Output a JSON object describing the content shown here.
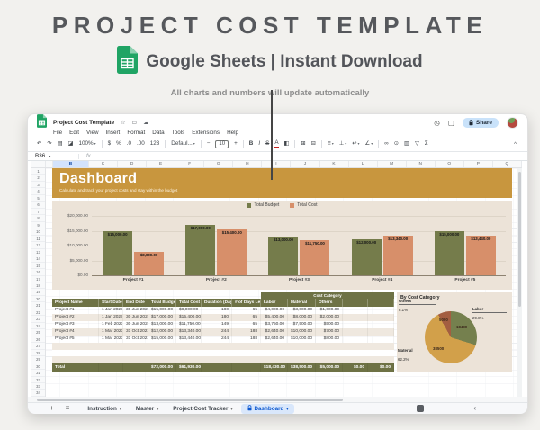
{
  "hero": {
    "title": "PROJECT COST TEMPLATE",
    "subtitle": "Google Sheets | Instant Download",
    "note": "All charts and numbers will update automatically"
  },
  "window": {
    "doc_title": "Project Cost Template",
    "menu": [
      "File",
      "Edit",
      "View",
      "Insert",
      "Format",
      "Data",
      "Tools",
      "Extensions",
      "Help"
    ],
    "name_box": "B36",
    "fx_label": "fx",
    "share_label": "Share",
    "zoom_level": "100%",
    "font_name": "Defaul...",
    "font_size": "10",
    "column_letters": [
      "A",
      "B",
      "C",
      "D",
      "E",
      "F",
      "G",
      "H",
      "I",
      "J",
      "K",
      "L",
      "M",
      "N",
      "O",
      "P",
      "Q"
    ],
    "selected_column": "B",
    "row_count": 34,
    "tabs": [
      {
        "label": "Instruction",
        "active": false,
        "locked": false
      },
      {
        "label": "Master",
        "active": false,
        "locked": false
      },
      {
        "label": "Project Cost Tracker",
        "active": false,
        "locked": false
      },
      {
        "label": "Dashboard",
        "active": true,
        "locked": true
      }
    ]
  },
  "banner": {
    "title": "Dashboard",
    "subtitle": "Calculate and track your project costs and stay within the budget"
  },
  "chart_data": [
    {
      "type": "bar",
      "title": "",
      "categories": [
        "Project #1",
        "Project #2",
        "Project #3",
        "Project #4",
        "Project #5"
      ],
      "series": [
        {
          "name": "Total Budget",
          "color": "#757c4b",
          "values": [
            15000,
            17000,
            13000,
            12000,
            15000
          ],
          "labels": [
            "$15,000.00",
            "$17,000.00",
            "$13,000.00",
            "$12,000.00",
            "$15,000.00"
          ]
        },
        {
          "name": "Total Cost",
          "color": "#d78f6a",
          "values": [
            8000,
            15400,
            11750,
            13340,
            13440
          ],
          "labels": [
            "$8,000.00",
            "$15,400.00",
            "$11,750.00",
            "$13,340.00",
            "$13,440.00"
          ]
        }
      ],
      "y_ticks": [
        "$20,000.00",
        "$15,000.00",
        "$10,000.00",
        "$5,000.00",
        "$0.00"
      ],
      "ylim": [
        0,
        20000
      ],
      "legend_position": "top",
      "grid": true
    },
    {
      "type": "pie",
      "title": "By Cost Category",
      "slices": [
        {
          "label": "Labor",
          "value": 18430,
          "pct": "29.8%",
          "color": "#75804e"
        },
        {
          "label": "Material",
          "value": 38500,
          "pct": "62.2%",
          "color": "#d2a04a"
        },
        {
          "label": "Others",
          "value": 5000,
          "pct": "8.1%",
          "color": "#a35e41"
        }
      ]
    }
  ],
  "table": {
    "group_header": "Cost Category",
    "headers": [
      "Project Name",
      "Start Date",
      "End Date",
      "Total Budget",
      "Total Cost",
      "Duration (Day)",
      "# of Days Left",
      "Labor",
      "Material",
      "Others",
      "",
      ""
    ],
    "rows": [
      [
        "Project #1",
        "1 Jan 2023",
        "30 Jun 2023",
        "$15,000.00",
        "$8,000.00",
        "180",
        "65",
        "$4,000.00",
        "$3,000.00",
        "$1,000.00",
        "",
        ""
      ],
      [
        "Project #2",
        "1 Jan 2023",
        "30 Jun 2023",
        "$17,000.00",
        "$15,400.00",
        "180",
        "65",
        "$5,400.00",
        "$8,000.00",
        "$2,000.00",
        "",
        ""
      ],
      [
        "Project #3",
        "1 Feb 2023",
        "30 Jun 2023",
        "$13,000.00",
        "$11,750.00",
        "149",
        "65",
        "$3,750.00",
        "$7,500.00",
        "$500.00",
        "",
        ""
      ],
      [
        "Project #4",
        "1 Mar 2023",
        "31 Oct 2023",
        "$12,000.00",
        "$13,340.00",
        "244",
        "188",
        "$2,640.00",
        "$10,000.00",
        "$700.00",
        "",
        ""
      ],
      [
        "Project #5",
        "1 Mar 2023",
        "31 Oct 2023",
        "$15,000.00",
        "$13,440.00",
        "244",
        "188",
        "$2,640.00",
        "$10,000.00",
        "$800.00",
        "",
        ""
      ]
    ],
    "total_row": [
      "Total",
      "",
      "",
      "$72,000.00",
      "$61,930.00",
      "",
      "",
      "$18,430.00",
      "$38,500.00",
      "$5,000.00",
      "$0.00",
      "$0.00"
    ]
  },
  "icons": {
    "undo": "↶",
    "redo": "↷",
    "print": "▤",
    "paint_format": "◪",
    "currency": "$",
    "percent": "%",
    "dec_dec": ".0",
    "inc_dec": ".00",
    "more_fmt": "123",
    "minus": "−",
    "plus": "+",
    "bold": "B",
    "italic": "I",
    "strikethrough": "S",
    "text_color": "A",
    "fill_color": "◧",
    "borders": "⊞",
    "merge": "⊟",
    "h_align": "≡",
    "v_align": "⊥",
    "wrap": "↩",
    "rotate": "∠",
    "link": "∞",
    "insert_comment": "⊙",
    "insert_chart": "▥",
    "filter": "▽",
    "functions": "Σ",
    "star": "☆",
    "folder": "▭",
    "cloud": "☁",
    "history": "◷",
    "comment": "▢",
    "dropdown": "▾",
    "collapse": "^",
    "add_sheet": "+",
    "all_sheets": "≡",
    "chevron_left": "‹"
  },
  "colors": {
    "accent_gold": "#c8963e",
    "olive": "#757c4b",
    "salmon": "#d78f6a",
    "panel_beige": "#ece3d8",
    "table_header": "#6e7245",
    "row_alt": "#efe8df",
    "pie_gold": "#d2a04a",
    "pie_brick": "#a35e41",
    "pie_olive": "#75804e",
    "share_bg": "#c9e2fa",
    "tab_active_bg": "#d9e7fb",
    "tab_active_text": "#0b57d0"
  }
}
